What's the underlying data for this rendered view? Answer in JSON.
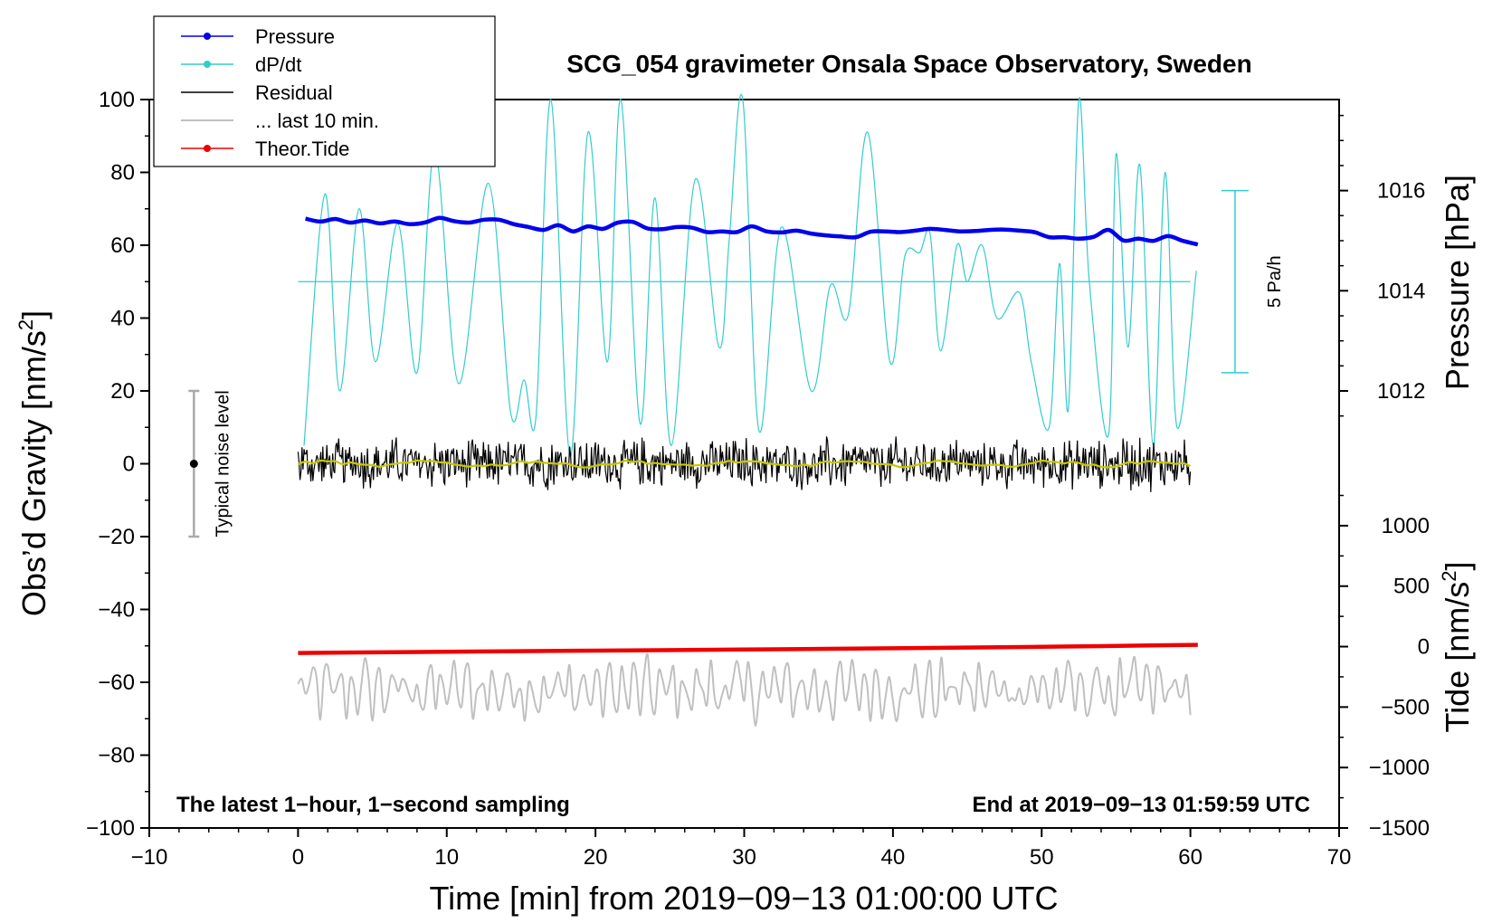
{
  "chart_data": {
    "type": "line",
    "title": "SCG_054 gravimeter Onsala Space Observatory, Sweden",
    "xlabel": "Time [min] from 2019−09−13 01:00:00 UTC",
    "ylabel_left": "Obs’d Gravity [nm/s",
    "ylabel_right_top": "Pressure [hPa]",
    "ylabel_right_bottom": "Tide [nm/s",
    "ylabel_sup": "2",
    "ylabel_close": "]",
    "xlim": [
      -10,
      70
    ],
    "ylim": [
      -100,
      100
    ],
    "xticks": [
      "−10",
      "0",
      "10",
      "20",
      "30",
      "40",
      "50",
      "60",
      "70"
    ],
    "xtick_values": [
      -10,
      0,
      10,
      20,
      30,
      40,
      50,
      60,
      70
    ],
    "yticks": [
      "−100",
      "−80",
      "−60",
      "−40",
      "−20",
      "0",
      "20",
      "40",
      "60",
      "80",
      "100"
    ],
    "ytick_values": [
      -100,
      -80,
      -60,
      -40,
      -20,
      0,
      20,
      40,
      60,
      80,
      100
    ],
    "pressure_axis": {
      "ticks": [
        "1012",
        "1014",
        "1016"
      ],
      "tick_values": [
        1012,
        1014,
        1016
      ],
      "plot_y_at_1012": 20,
      "plot_y_at_1016": 75
    },
    "tide_axis": {
      "ticks": [
        "−1500",
        "−1000",
        "−500",
        "0",
        "500",
        "1000"
      ],
      "tick_values": [
        -1500,
        -1000,
        -500,
        0,
        500,
        1000
      ],
      "plot_y_at_minus1500": -100,
      "plot_y_at_1000": -17
    },
    "legend": {
      "position": "top-left",
      "entries": [
        {
          "label": "Pressure",
          "color": "#0000ee",
          "marker": true
        },
        {
          "label": "dP/dt",
          "color": "#33cccc",
          "marker": true
        },
        {
          "label": "Residual",
          "color": "#000000",
          "marker": false
        },
        {
          "label": "... last 10 min.",
          "color": "#c0c0c0",
          "marker": false
        },
        {
          "label": "Theor.Tide",
          "color": "#ee0000",
          "marker": true
        }
      ]
    },
    "noise_bar": {
      "label": "Typical noise level",
      "x": -7,
      "range": [
        -20,
        20
      ],
      "center": 0
    },
    "dpdt_scale": {
      "label": "5 Pa/h",
      "x": 63,
      "range": [
        25,
        75
      ]
    },
    "dpdt_zero_line": {
      "x": [
        0,
        60
      ],
      "y": 50
    },
    "footer_left": "The latest 1−hour, 1−second sampling",
    "footer_right": "End at 2019−09−13 01:59:59 UTC",
    "series": [
      {
        "name": "Pressure",
        "color": "#0000ee",
        "x": [
          0.5,
          1.5,
          2.5,
          3.5,
          4.5,
          5.5,
          6.5,
          7.5,
          8.5,
          9.5,
          10.5,
          11.5,
          12.5,
          13.5,
          14.5,
          15.5,
          16.5,
          17.5,
          18.5,
          19.5,
          20.5,
          21.5,
          22.5,
          23.5,
          24.5,
          25.5,
          26.5,
          27.5,
          28.5,
          29.5,
          30.5,
          31.5,
          32.5,
          33.5,
          34.5,
          35.5,
          36.5,
          37.5,
          38.5,
          39.5,
          40.5,
          41.5,
          42.5,
          43.5,
          44.5,
          45.5,
          46.5,
          47.5,
          48.5,
          49.5,
          50.5,
          51.5,
          52.5,
          53.5,
          54.5,
          55.5,
          56.5,
          57.5,
          58.5,
          59.5,
          60.5
        ],
        "values": [
          67.3,
          66.5,
          67.2,
          66.2,
          66.8,
          66.0,
          66.5,
          65.8,
          66.2,
          67.5,
          66.6,
          66.2,
          67.0,
          67.0,
          65.8,
          65.0,
          64.2,
          65.5,
          63.8,
          65.2,
          64.5,
          66.2,
          66.4,
          64.6,
          64.4,
          65.0,
          64.8,
          63.6,
          63.8,
          63.6,
          65.2,
          63.8,
          63.5,
          64.0,
          63.2,
          62.7,
          62.4,
          62.2,
          63.7,
          63.8,
          63.6,
          64.0,
          64.5,
          64.2,
          63.8,
          63.9,
          64.2,
          64.3,
          64.0,
          63.6,
          62.2,
          62.2,
          61.8,
          62.3,
          64.2,
          61.3,
          61.8,
          61.2,
          62.5,
          61.2,
          60.2
        ]
      },
      {
        "name": "dP/dt",
        "color": "#33cccc",
        "x": [
          0.4,
          1.8,
          2.8,
          4.1,
          5.2,
          6.7,
          8.0,
          9.2,
          10.8,
          12.8,
          14.3,
          15.2,
          16.0,
          17.0,
          18.3,
          19.5,
          20.8,
          21.7,
          23.0,
          24.0,
          25.1,
          26.7,
          28.3,
          29.0,
          29.9,
          31.0,
          32.5,
          34.5,
          35.8,
          37.0,
          38.3,
          39.8,
          40.8,
          41.8,
          42.5,
          43.2,
          44.3,
          45.0,
          46.0,
          47.0,
          48.5,
          49.3,
          50.5,
          51.2,
          51.8,
          52.5,
          53.2,
          54.5,
          55.0,
          55.8,
          56.6,
          57.5,
          58.3,
          59.1,
          60.4
        ],
        "values": [
          5,
          74,
          20,
          70,
          28,
          66,
          25,
          86,
          22,
          77,
          14,
          23,
          13,
          100,
          2,
          91,
          28,
          100,
          11,
          73,
          5,
          78,
          32,
          62,
          100,
          9,
          65,
          20,
          49,
          41,
          91,
          28,
          57,
          58,
          63,
          31,
          60,
          50,
          60,
          40,
          47,
          28,
          10,
          55,
          15,
          100,
          50,
          8,
          85,
          32,
          82,
          5,
          80,
          10,
          53
        ]
      },
      {
        "name": "Residual",
        "color": "#000000",
        "x_range": [
          0,
          60
        ],
        "noise_amplitude": 8,
        "mean": 0
      },
      {
        "name": "Residual smoothed",
        "color": "#c8c800",
        "x_range": [
          0,
          60
        ],
        "mean": 0
      },
      {
        "name": "... last 10 min.",
        "color": "#c0c0c0",
        "x_range": [
          0,
          60
        ],
        "mean": -62,
        "amplitude": 10
      },
      {
        "name": "Theor.Tide",
        "color": "#ee0000",
        "x": [
          0,
          10,
          20,
          30,
          40,
          50,
          60.5
        ],
        "tide_values": [
          -53,
          -42,
          -33,
          -24,
          -14,
          -2,
          15
        ]
      }
    ]
  }
}
